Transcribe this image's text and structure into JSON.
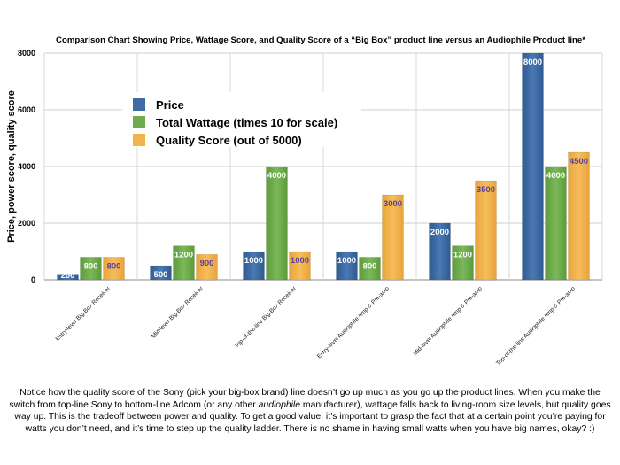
{
  "chart_data": {
    "type": "bar",
    "title": "Comparison Chart Showing Price, Wattage Score, and Quality Score of a “Big Box” product line versus an Audiophile Product line*",
    "xlabel": "",
    "ylabel": "Price, power score, quality score",
    "ylim": [
      0,
      8000
    ],
    "yticks": [
      "0",
      "2000",
      "4000",
      "6000",
      "8000"
    ],
    "grid": true,
    "legend_position": "top-left",
    "categories": [
      "Entry-level Big-Box Receiver",
      "Mid-level Big-Box Receiver",
      "Top-of-the-line Big-Box Receiver",
      "Entry-level Audiophile Amp & Pre-amp",
      "Mid-level Audiophile Amp & Pre-amp",
      "Top-of-the-line Audiophile Amp & Pre-amp"
    ],
    "series": [
      {
        "name": "Price",
        "color": "#3f6aa3",
        "values": [
          200,
          500,
          1000,
          1000,
          2000,
          8000
        ],
        "labels": [
          "200",
          "500",
          "1000",
          "1000",
          "2000",
          "8000"
        ]
      },
      {
        "name": "Total Wattage (times 10 for scale)",
        "color": "#6fac4c",
        "values": [
          800,
          1200,
          4000,
          800,
          1200,
          4000
        ],
        "labels": [
          "800",
          "1200",
          "4000",
          "800",
          "1200",
          "4000"
        ]
      },
      {
        "name": "Quality Score (out of 5000)",
        "color": "#f2b24d",
        "values": [
          800,
          900,
          1000,
          3000,
          3500,
          4500
        ],
        "labels": [
          "800",
          "900",
          "1000",
          "3000",
          "3500",
          "4500"
        ]
      }
    ]
  },
  "caption": {
    "part1": "Notice how the quality score of the Sony (pick your big-box brand) line doesn’t go up much as you go up the product lines. When you make the switch from top-line Sony to bottom-line Adcom (or any other ",
    "emphasis": "audiophile",
    "part2": " manufacturer), wattage falls back to living-room size levels, but quality goes way up. This is the tradeoff between power and quality. To get a good value, it’s important to grasp the fact that at a certain point you’re paying for watts you don’t need, and it’s time to step up the quality ladder. There is no shame in having small watts when you have big names, okay? :)"
  }
}
